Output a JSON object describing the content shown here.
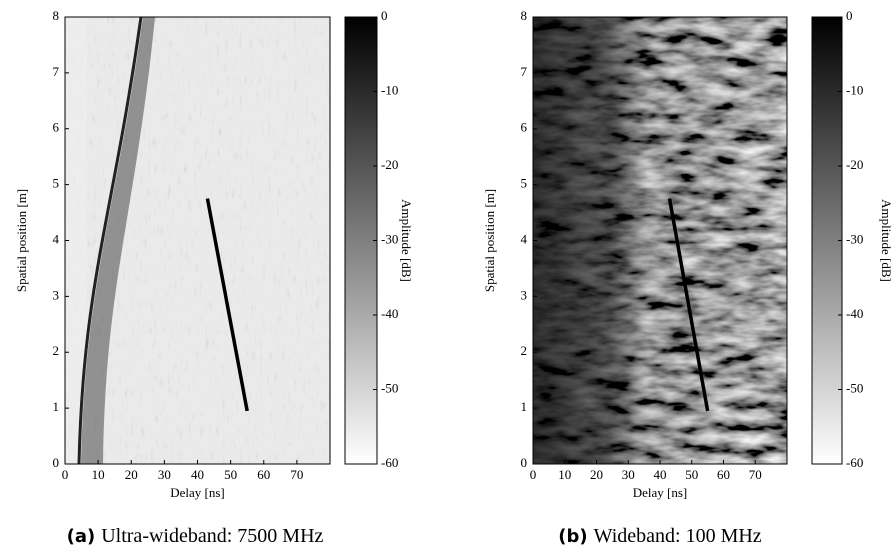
{
  "chart_data": [
    {
      "type": "heatmap",
      "caption_label": "(a)",
      "caption": "Ultra-wideband: 7500 MHz",
      "xlabel": "Delay [ns]",
      "ylabel": "Spatial position [m]",
      "xlim": [
        0,
        80
      ],
      "xticks": [
        0,
        10,
        20,
        30,
        40,
        50,
        60,
        70
      ],
      "ylim": [
        0,
        8
      ],
      "yticks": [
        0,
        1,
        2,
        3,
        4,
        5,
        6,
        7,
        8
      ],
      "colorbar": {
        "label": "Amplitude [dB]",
        "lim": [
          -60,
          0
        ],
        "ticks": [
          0,
          -10,
          -20,
          -30,
          -40,
          -50,
          -60
        ],
        "colors": [
          "#ffffff",
          "#000000"
        ]
      },
      "overlay": {
        "x": [
          43,
          55
        ],
        "y": [
          4.75,
          0.95
        ],
        "color": "#000000"
      }
    },
    {
      "type": "heatmap",
      "caption_label": "(b)",
      "caption": "Wideband: 100 MHz",
      "xlabel": "Delay [ns]",
      "ylabel": "Spatial position [m]",
      "xlim": [
        0,
        80
      ],
      "xticks": [
        0,
        10,
        20,
        30,
        40,
        50,
        60,
        70
      ],
      "ylim": [
        0,
        8
      ],
      "yticks": [
        0,
        1,
        2,
        3,
        4,
        5,
        6,
        7,
        8
      ],
      "colorbar": {
        "label": "Amplitude [dB]",
        "lim": [
          -60,
          0
        ],
        "ticks": [
          0,
          -10,
          -20,
          -30,
          -40,
          -50,
          -60
        ],
        "colors": [
          "#ffffff",
          "#000000"
        ]
      },
      "overlay": {
        "x": [
          43,
          55
        ],
        "y": [
          4.75,
          0.95
        ],
        "color": "#000000"
      }
    }
  ]
}
